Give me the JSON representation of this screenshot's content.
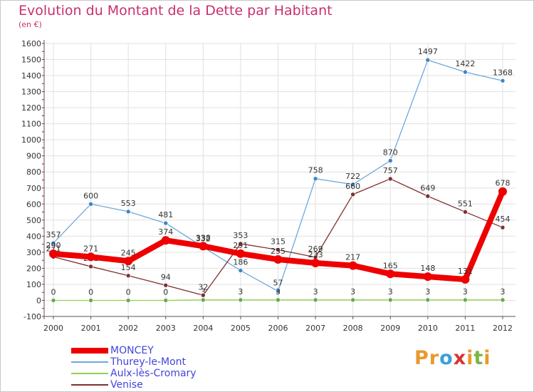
{
  "title": "Evolution du Montant de la Dette par Habitant",
  "unit_label": "(en €)",
  "logo": {
    "text": "Proxiti",
    "letter_colors": [
      "#e89a2c",
      "#e89a2c",
      "#3ba0dc",
      "#d83434",
      "#e89a2c",
      "#7ab648",
      "#e89a2c"
    ]
  },
  "chart_data": {
    "type": "line",
    "x": [
      "2000",
      "2001",
      "2002",
      "2003",
      "2004",
      "2005",
      "2006",
      "2007",
      "2008",
      "2009",
      "2010",
      "2011",
      "2012"
    ],
    "ylim": [
      -100,
      1600
    ],
    "yticks": [
      -100,
      0,
      100,
      200,
      300,
      400,
      500,
      600,
      700,
      800,
      900,
      1000,
      1100,
      1200,
      1300,
      1400,
      1500,
      1600
    ],
    "grid": true,
    "legend_position": "bottom-left",
    "series": [
      {
        "name": "Thurey-le-Mont",
        "color": "#6fa8dc",
        "marker_color": "#3d85c6",
        "values": [
          357,
          600,
          553,
          481,
          332,
          186,
          57,
          758,
          722,
          870,
          1497,
          1422,
          1368
        ]
      },
      {
        "name": "Aulx-lès-Cromary",
        "color": "#93d050",
        "marker_color": "#6aa84f",
        "values": [
          0,
          0,
          0,
          0,
          3,
          3,
          3,
          3,
          3,
          3,
          3,
          3,
          3
        ]
      },
      {
        "name": "Venise",
        "color": "#7f3030",
        "marker_color": "#7f3030",
        "values": [
          271,
          211,
          154,
          94,
          32,
          353,
          315,
          269,
          660,
          757,
          649,
          551,
          454
        ]
      },
      {
        "name": "MONCEY",
        "color": "#ee0000",
        "marker_color": "#ee0000",
        "values": [
          290,
          271,
          245,
          374,
          338,
          291,
          255,
          233,
          217,
          165,
          148,
          131,
          678
        ]
      }
    ],
    "legend_order": [
      "MONCEY",
      "Thurey-le-Mont",
      "Aulx-lès-Cromary",
      "Venise"
    ]
  }
}
